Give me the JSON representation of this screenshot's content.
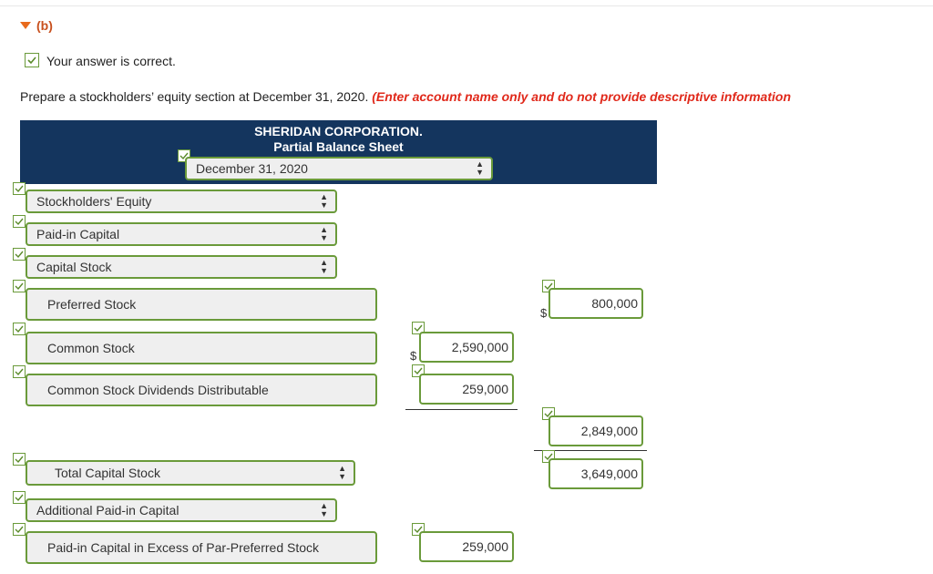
{
  "part": {
    "label": "(b)"
  },
  "status": {
    "text": "Your answer is correct."
  },
  "prompt": {
    "text": "Prepare a stockholders’ equity section at December 31, 2020.",
    "instruction": "(Enter account name only and do not provide descriptive information"
  },
  "header": {
    "company": "SHERIDAN CORPORATION.",
    "title": "Partial Balance Sheet",
    "date": "December 31, 2020"
  },
  "rows": {
    "stockholders_equity": "Stockholders' Equity",
    "paid_in_capital": "Paid-in Capital",
    "capital_stock": "Capital Stock",
    "preferred_stock": "Preferred Stock",
    "common_stock": "Common Stock",
    "common_stock_dividends": "Common Stock Dividends Distributable",
    "total_capital_stock": "Total Capital Stock",
    "additional_paid_in_capital": "Additional Paid-in Capital",
    "paid_in_excess_preferred": "Paid-in Capital in Excess of Par-Preferred Stock"
  },
  "amounts": {
    "preferred_stock": "800,000",
    "common_stock": "2,590,000",
    "common_stock_dividends": "259,000",
    "subtotal_common": "2,849,000",
    "total_capital_stock": "3,649,000",
    "paid_in_excess_preferred": "259,000"
  },
  "symbols": {
    "dollar": "$"
  },
  "colors": {
    "accent_orange": "#c8501e",
    "header_bg": "#14355e",
    "correct_green": "#6a9a3a",
    "instruction_red": "#e0281a"
  }
}
